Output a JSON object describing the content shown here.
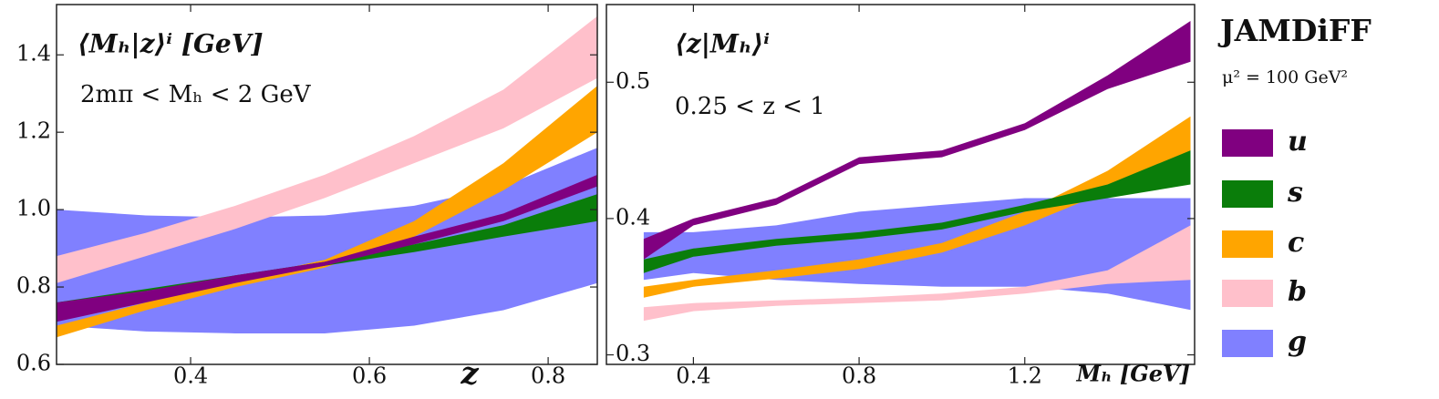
{
  "legend_title": "JAMDiFF",
  "legend_subtitle": "μ² = 100 GeV²",
  "chart_data": [
    {
      "type": "band",
      "title": "⟨Mₕ|z⟩ⁱ [GeV]",
      "subtitle": "2mπ < Mₕ < 2 GeV",
      "x_label": "z",
      "xlim": [
        0.25,
        0.855
      ],
      "ylim": [
        0.6,
        1.53
      ],
      "xticks": [
        0.4,
        0.6,
        0.8
      ],
      "yticks": [
        0.6,
        0.8,
        {
          "value": 1,
          "label": "1.0"
        },
        1.2,
        1.4
      ],
      "x": [
        0.25,
        0.35,
        0.45,
        0.55,
        0.65,
        0.75,
        0.855
      ],
      "series": [
        {
          "name": "u",
          "color": "#800080",
          "lower": [
            0.71,
            0.76,
            0.81,
            0.855,
            0.91,
            0.97,
            1.06
          ],
          "upper": [
            0.76,
            0.79,
            0.83,
            0.865,
            0.93,
            0.99,
            1.09
          ]
        },
        {
          "name": "s",
          "color": "#0a7d0a",
          "lower": [
            0.74,
            0.78,
            0.82,
            0.855,
            0.89,
            0.93,
            0.97
          ],
          "upper": [
            0.76,
            0.795,
            0.83,
            0.865,
            0.91,
            0.96,
            1.04
          ]
        },
        {
          "name": "c",
          "color": "#ffa500",
          "lower": [
            0.67,
            0.74,
            0.8,
            0.85,
            0.93,
            1.05,
            1.2
          ],
          "upper": [
            0.7,
            0.76,
            0.82,
            0.87,
            0.97,
            1.12,
            1.32
          ]
        },
        {
          "name": "b",
          "color": "#ffc0cb",
          "lower": [
            0.81,
            0.88,
            0.95,
            1.03,
            1.12,
            1.21,
            1.34
          ],
          "upper": [
            0.88,
            0.94,
            1.01,
            1.09,
            1.19,
            1.31,
            1.5
          ]
        },
        {
          "name": "g",
          "color": "#8080ff",
          "lower": [
            0.7,
            0.685,
            0.68,
            0.68,
            0.7,
            0.74,
            0.81
          ],
          "upper": [
            1.0,
            0.985,
            0.98,
            0.985,
            1.01,
            1.06,
            1.16
          ]
        }
      ]
    },
    {
      "type": "band",
      "title": "⟨z|Mₕ⟩ⁱ",
      "subtitle": "0.25 < z < 1",
      "x_label": "Mₕ [GeV]",
      "xlim": [
        0.19,
        1.61
      ],
      "ylim": [
        0.293,
        0.557
      ],
      "xticks": [
        0.4,
        0.8,
        1.2
      ],
      "yticks": [
        0.3,
        0.4,
        0.5
      ],
      "x": [
        0.28,
        0.4,
        0.6,
        0.8,
        1.0,
        1.2,
        1.4,
        1.6
      ],
      "series": [
        {
          "color": "#800080",
          "lower": [
            0.37,
            0.395,
            0.41,
            0.44,
            0.445,
            0.465,
            0.495,
            0.515
          ],
          "upper": [
            0.385,
            0.4,
            0.415,
            0.445,
            0.45,
            0.47,
            0.505,
            0.545
          ]
        },
        {
          "color": "#0a7d0a",
          "lower": [
            0.36,
            0.372,
            0.38,
            0.385,
            0.392,
            0.405,
            0.415,
            0.425
          ],
          "upper": [
            0.37,
            0.378,
            0.385,
            0.39,
            0.397,
            0.41,
            0.425,
            0.45
          ]
        },
        {
          "color": "#ffa500",
          "lower": [
            0.342,
            0.35,
            0.356,
            0.363,
            0.375,
            0.395,
            0.42,
            0.445
          ],
          "upper": [
            0.35,
            0.355,
            0.362,
            0.37,
            0.382,
            0.405,
            0.435,
            0.475
          ]
        },
        {
          "color": "#ffc0cb",
          "lower": [
            0.325,
            0.332,
            0.336,
            0.338,
            0.34,
            0.345,
            0.352,
            0.355
          ],
          "upper": [
            0.335,
            0.338,
            0.34,
            0.342,
            0.345,
            0.35,
            0.362,
            0.395
          ]
        },
        {
          "color": "#8080ff",
          "lower": [
            0.355,
            0.36,
            0.355,
            0.352,
            0.35,
            0.35,
            0.345,
            0.333
          ],
          "upper": [
            0.39,
            0.39,
            0.395,
            0.405,
            0.41,
            0.415,
            0.415,
            0.415
          ]
        }
      ]
    }
  ]
}
